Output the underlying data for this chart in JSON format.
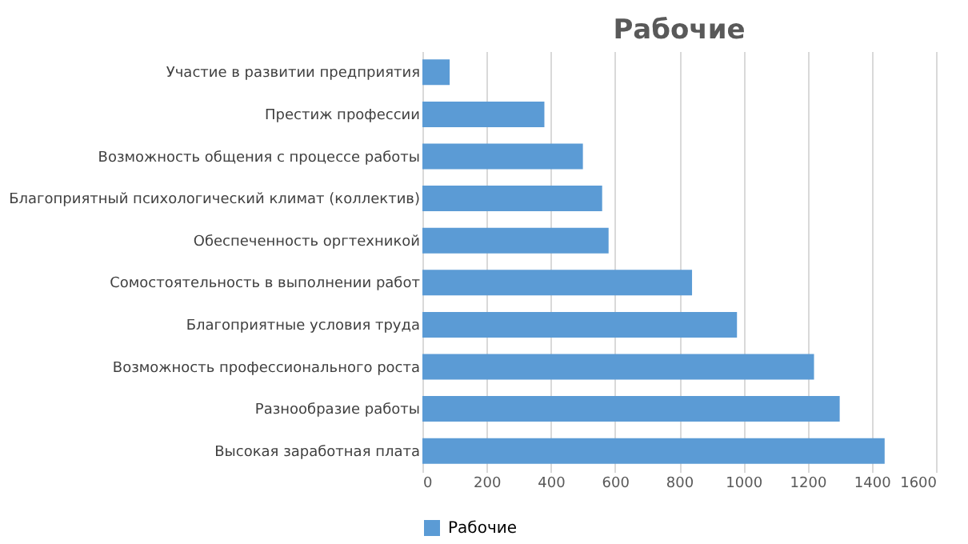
{
  "chart_data": {
    "type": "bar",
    "orientation": "horizontal",
    "title": "Рабочие",
    "categories": [
      "Участие в развитии предприятия",
      "Престиж профессии",
      "Возможность общения с процессе работы",
      "Благоприятный психологический климат (коллектив)",
      "Обеспеченность оргтехникой",
      "Сомостоятельность в выполнении работ",
      "Благоприятные условия труда",
      "Возможность профессионального роста",
      "Разнообразие работы",
      "Высокая заработная плата"
    ],
    "series": [
      {
        "name": "Рабочие",
        "color": "#5b9bd5",
        "values": [
          85,
          380,
          500,
          560,
          580,
          840,
          980,
          1220,
          1300,
          1440
        ]
      }
    ],
    "xlim": [
      0,
      1600
    ],
    "xticks": [
      0,
      200,
      400,
      600,
      800,
      1000,
      1200,
      1400,
      1600
    ],
    "grid": "x",
    "legend": "bottom"
  }
}
